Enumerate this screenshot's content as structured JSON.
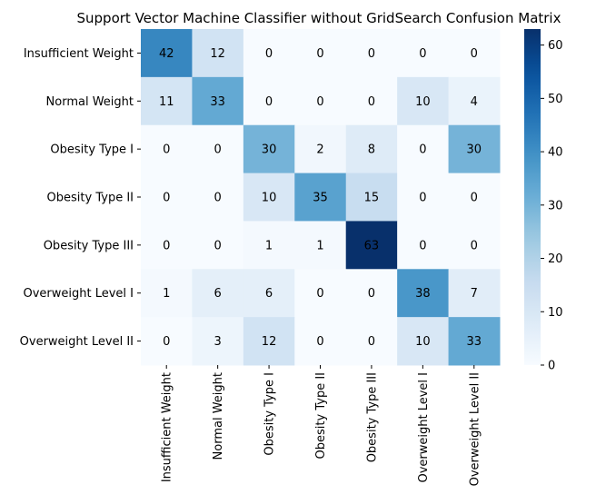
{
  "chart_data": {
    "type": "heatmap",
    "title": "Support Vector Machine Classifier without GridSearch Confusion Matrix",
    "xlabel": "",
    "ylabel": "",
    "rows": [
      "Insufficient Weight",
      "Normal Weight",
      "Obesity Type I",
      "Obesity Type II",
      "Obesity Type III",
      "Overweight Level I",
      "Overweight Level II"
    ],
    "columns": [
      "Insufficient Weight",
      "Normal Weight",
      "Obesity Type I",
      "Obesity Type II",
      "Obesity Type III",
      "Overweight Level I",
      "Overweight Level II"
    ],
    "values": [
      [
        42,
        12,
        0,
        0,
        0,
        0,
        0
      ],
      [
        11,
        33,
        0,
        0,
        0,
        10,
        4
      ],
      [
        0,
        0,
        30,
        2,
        8,
        0,
        30
      ],
      [
        0,
        0,
        10,
        35,
        15,
        0,
        0
      ],
      [
        0,
        0,
        1,
        1,
        63,
        0,
        0
      ],
      [
        1,
        6,
        6,
        0,
        0,
        38,
        7
      ],
      [
        0,
        3,
        12,
        0,
        0,
        10,
        33
      ]
    ],
    "colormap": "Blues",
    "vmin": 0,
    "vmax": 63,
    "colorbar_ticks": [
      0,
      10,
      20,
      30,
      40,
      50,
      60
    ],
    "annotations": true
  }
}
